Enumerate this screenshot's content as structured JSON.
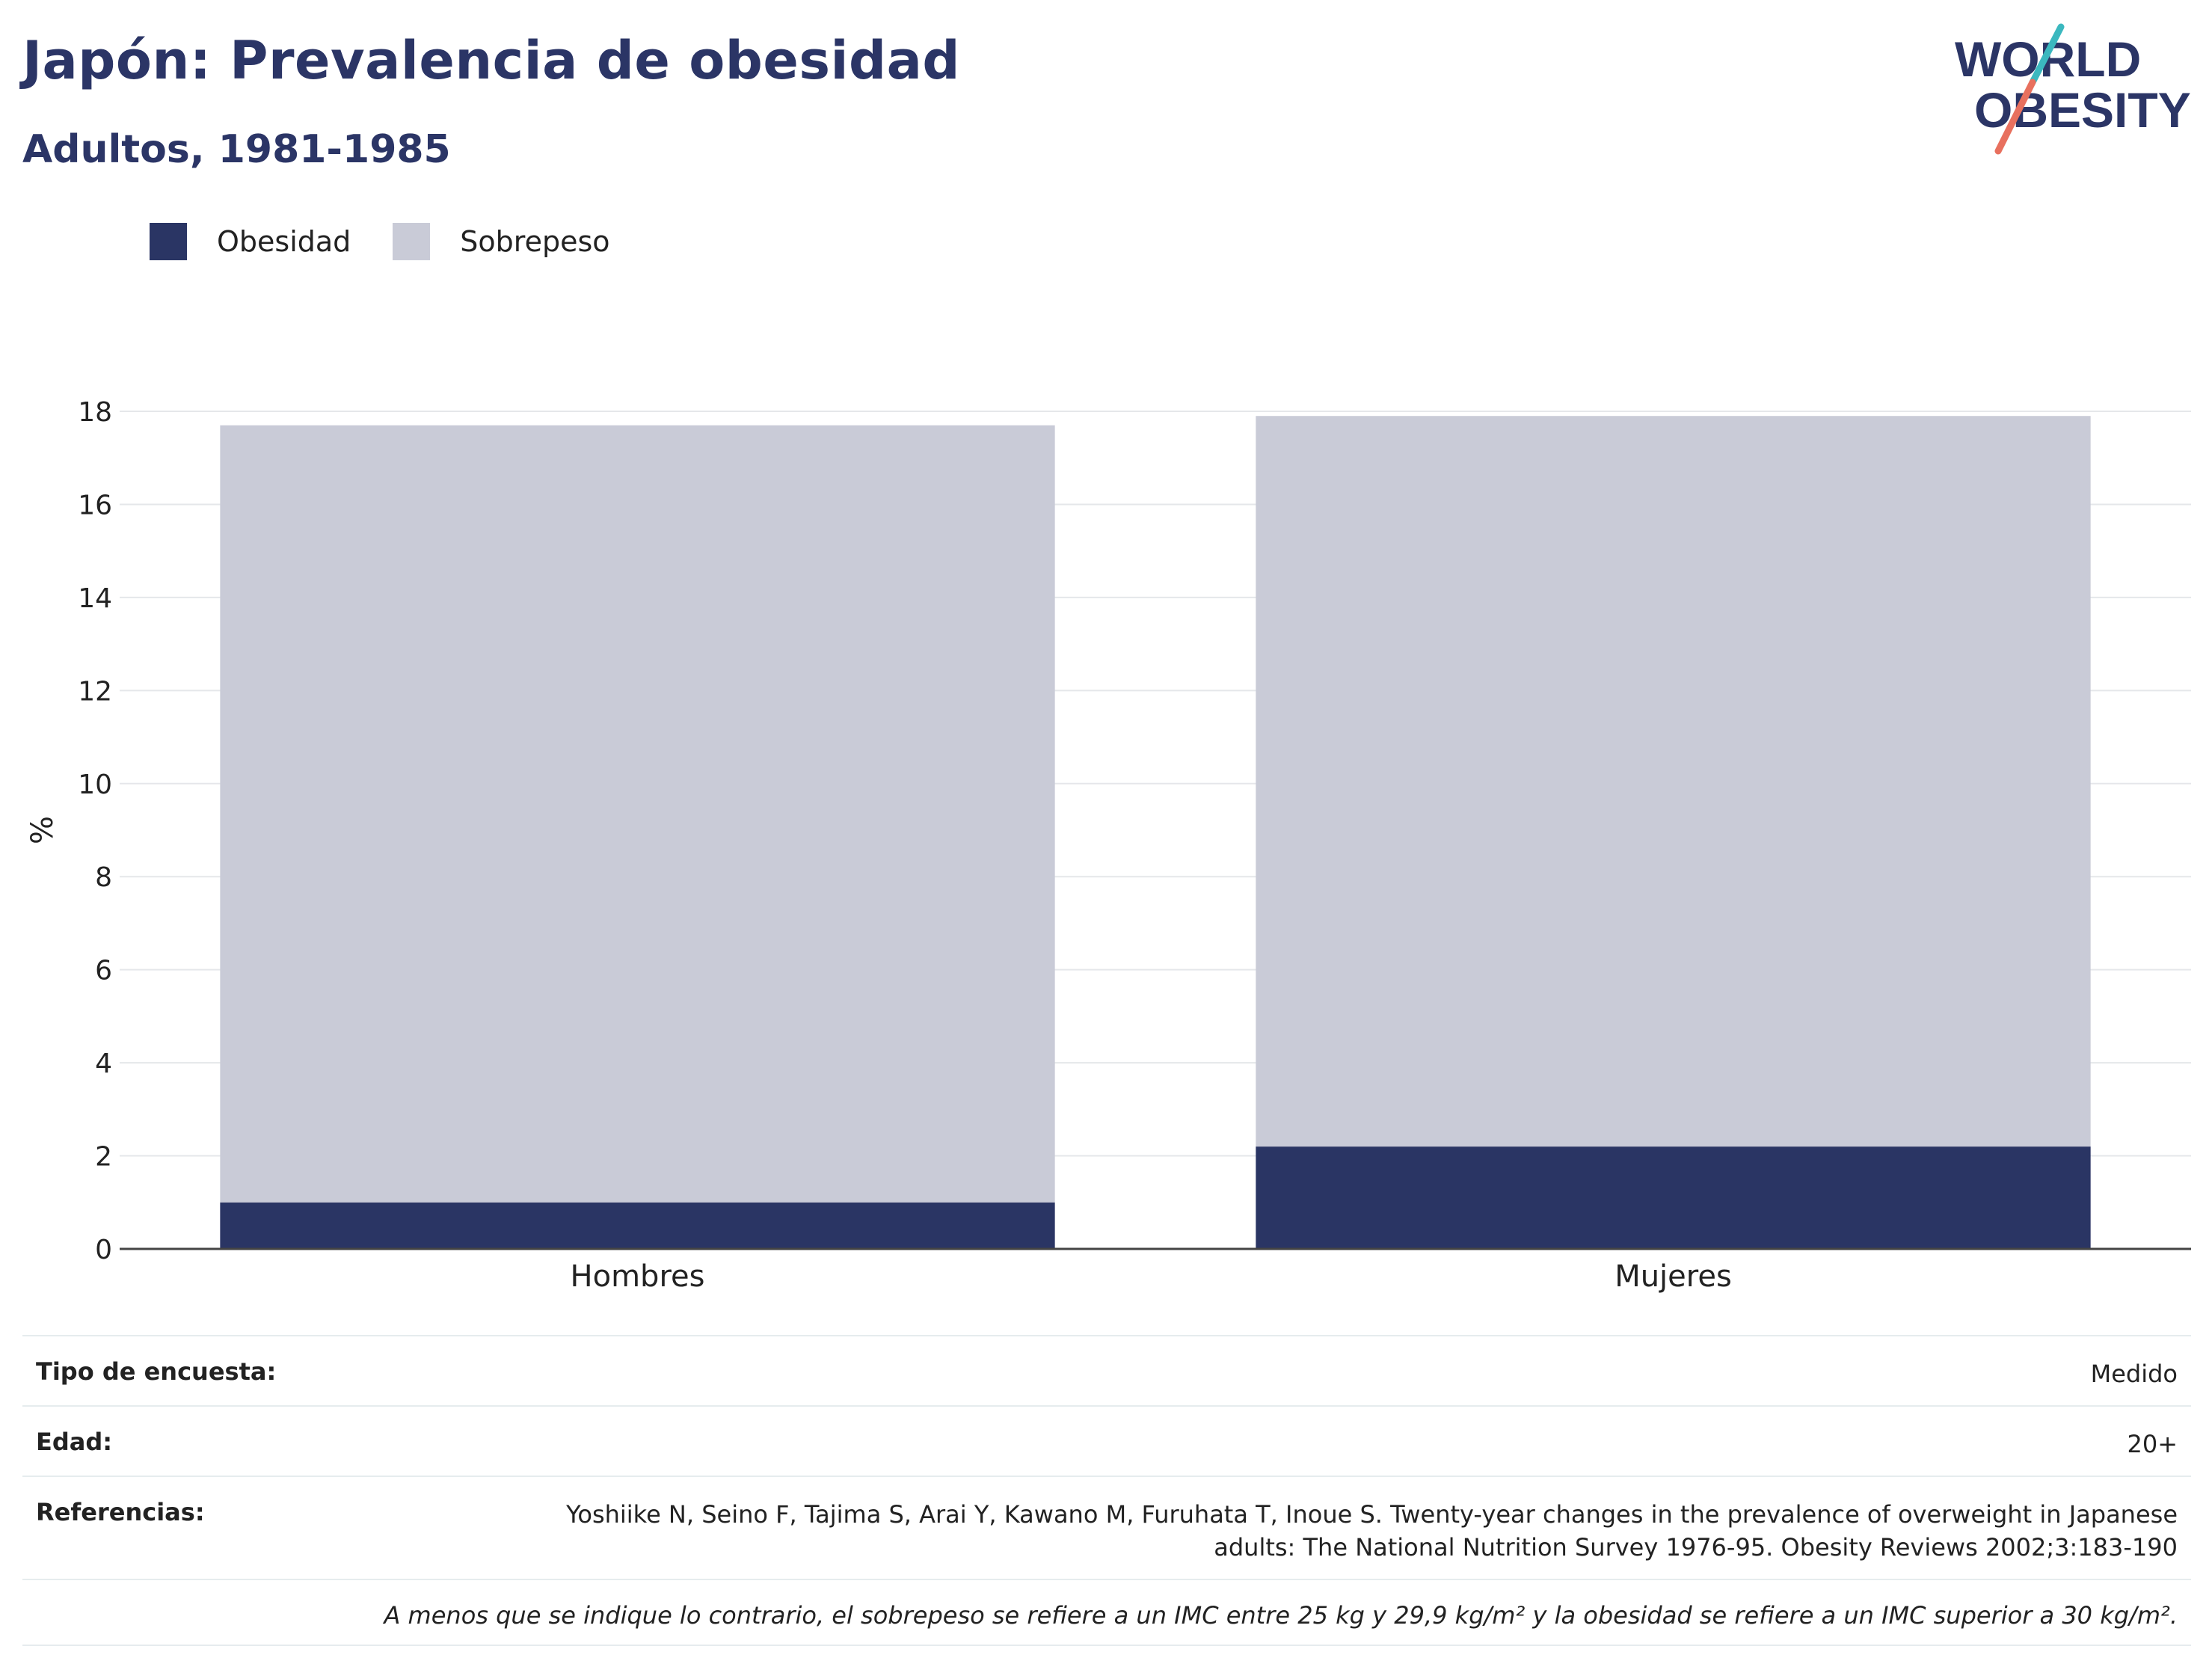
{
  "title": "Japón: Prevalencia de obesidad",
  "subtitle": "Adultos, 1981-1985",
  "logo": {
    "line1": "WORLD",
    "line2": "OBESITY"
  },
  "legend": [
    {
      "label": "Obesidad",
      "color": "#2a3564"
    },
    {
      "label": "Sobrepeso",
      "color": "#c9cbd7"
    }
  ],
  "chart_data": {
    "type": "bar",
    "stacked": true,
    "categories": [
      "Hombres",
      "Mujeres"
    ],
    "series": [
      {
        "name": "Obesidad",
        "values": [
          1.0,
          2.2
        ],
        "color": "#2a3564"
      },
      {
        "name": "Sobrepeso",
        "values": [
          16.7,
          15.7
        ],
        "color": "#c9cbd7"
      }
    ],
    "ylabel": "%",
    "ylim": [
      0,
      18
    ],
    "yticks": [
      0,
      2,
      4,
      6,
      8,
      10,
      12,
      14,
      16,
      18
    ],
    "grid": true
  },
  "info": {
    "survey_label": "Tipo de encuesta:",
    "survey_value": "Medido",
    "age_label": "Edad:",
    "age_value": "20+",
    "refs_label": "Referencias:",
    "refs_line1": "Yoshiike N, Seino F, Tajima S, Arai Y, Kawano M, Furuhata T, Inoue S. Twenty-year changes in the prevalence of overweight in Japanese",
    "refs_line2": "adults: The National Nutrition Survey 1976-95. Obesity Reviews 2002;3:183-190",
    "note": "A menos que se indique lo contrario, el sobrepeso se refiere a un IMC entre 25 kg y 29,9 kg/m² y la obesidad se refiere a un IMC superior a 30 kg/m²."
  }
}
